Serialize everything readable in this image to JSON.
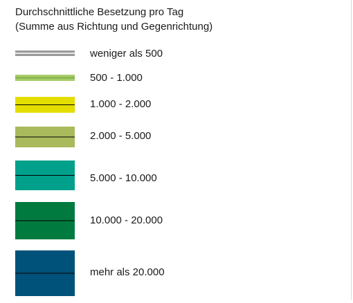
{
  "legend": {
    "title": [
      "Durchschnittliche Besetzung pro Tag",
      "(Summe aus Richtung und Gegenrichtung)"
    ],
    "items": [
      {
        "label": "weniger als 500",
        "color": "#9a9a9a",
        "line": "#e6e6e6"
      },
      {
        "label": "500 - 1.000",
        "color": "#a7cd6b",
        "line": "#7fae45"
      },
      {
        "label": "1.000 - 2.000",
        "color": "#e3de00",
        "line": "#000000"
      },
      {
        "label": "2.000 - 5.000",
        "color": "#a9ba5c",
        "line": "#000000"
      },
      {
        "label": "5.000 - 10.000",
        "color": "#00a08b",
        "line": "#000000"
      },
      {
        "label": "10.000 - 20.000",
        "color": "#007a3f",
        "line": "#000000"
      },
      {
        "label": "mehr als 20.000",
        "color": "#00527a",
        "line": "#000000"
      }
    ]
  }
}
